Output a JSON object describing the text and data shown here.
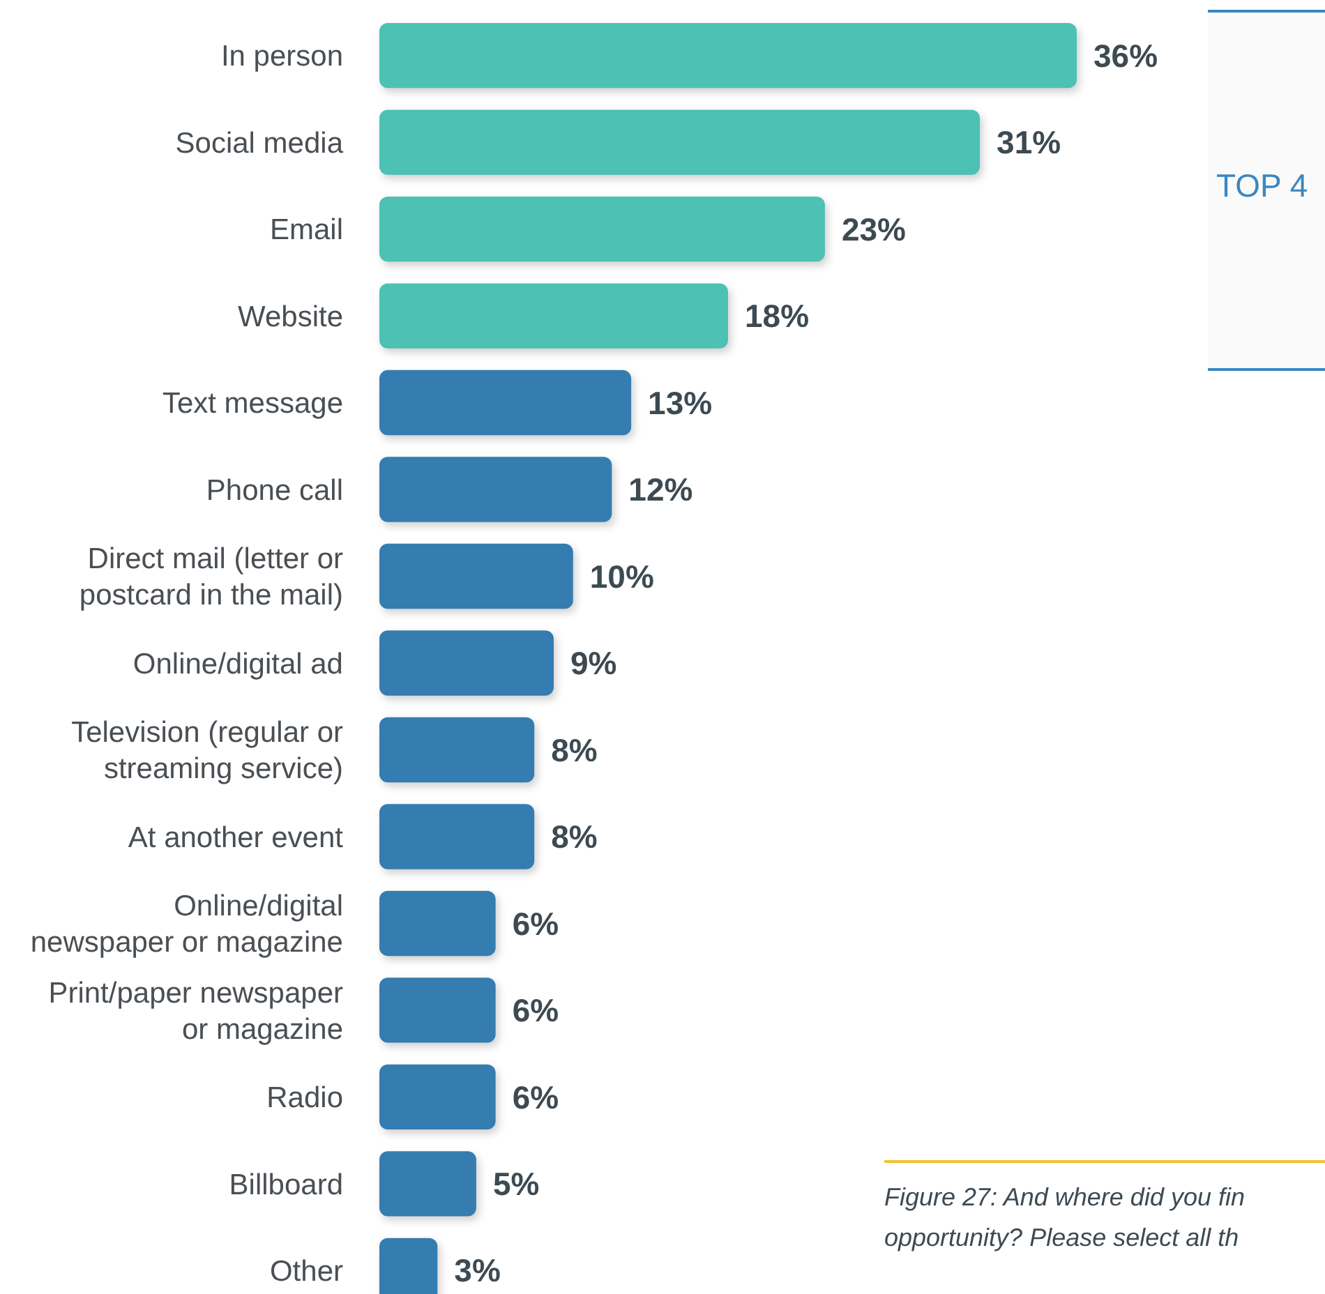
{
  "chart_data": {
    "type": "bar",
    "orientation": "horizontal",
    "relative": false,
    "data_labels": true,
    "categories": [
      "In person",
      "Social media",
      "Email",
      "Website",
      "Text message",
      "Phone call",
      "Direct mail (letter or postcard in the mail)",
      "Online/digital ad",
      "Television (regular or streaming service)",
      "At another event",
      "Online/digital newspaper or magazine",
      "Print/paper newspaper or magazine",
      "Radio",
      "Billboard",
      "Other"
    ],
    "values": [
      36,
      31,
      23,
      18,
      13,
      12,
      10,
      9,
      8,
      8,
      6,
      6,
      6,
      5,
      3
    ],
    "colors": [
      "#4cc1b4",
      "#4cc1b4",
      "#4cc1b4",
      "#4cc1b4",
      "#357cb0",
      "#357cb0",
      "#357cb0",
      "#357cb0",
      "#357cb0",
      "#357cb0",
      "#357cb0",
      "#357cb0",
      "#357cb0",
      "#357cb0",
      "#357cb0"
    ],
    "value_labels": [
      "36%",
      "31%",
      "23%",
      "18%",
      "13%",
      "12%",
      "10%",
      "9%",
      "8%",
      "8%",
      "6%",
      "6%",
      "6%",
      "5%",
      "3%"
    ],
    "annotations": [
      "TOP 4",
      "Figure 27: And where did you fin\nopportunity? Please select all th"
    ]
  }
}
